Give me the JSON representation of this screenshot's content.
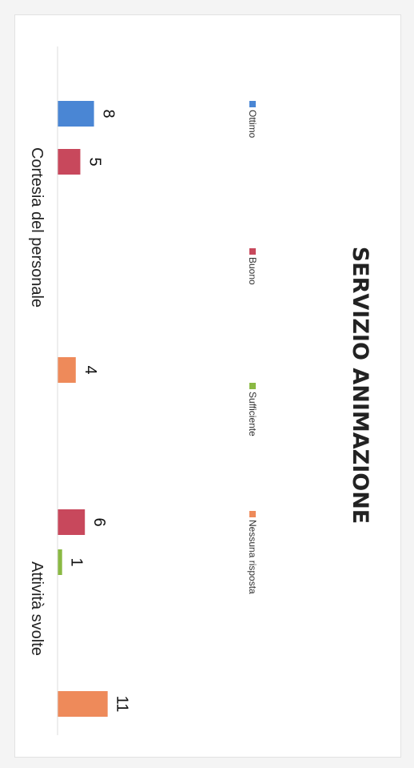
{
  "chart_data": {
    "type": "bar",
    "title": "SERVIZIO ANIMAZIONE",
    "categories": [
      "Cortesia del personale",
      "Attività svolte"
    ],
    "series": [
      {
        "name": "Ottimo",
        "color": "#4a86d4",
        "values": [
          8,
          0
        ]
      },
      {
        "name": "Buono",
        "color": "#c8485c",
        "values": [
          5,
          6
        ]
      },
      {
        "name": "Sufficiente",
        "color": "#8ab943",
        "values": [
          0,
          1
        ]
      },
      {
        "name": "Nessuna risposta",
        "color": "#ee8a5a",
        "values": [
          4,
          11
        ]
      }
    ],
    "ylim": [
      0,
      12
    ],
    "grid": false,
    "legend": "top",
    "orientation": "rotated-90-clockwise"
  }
}
